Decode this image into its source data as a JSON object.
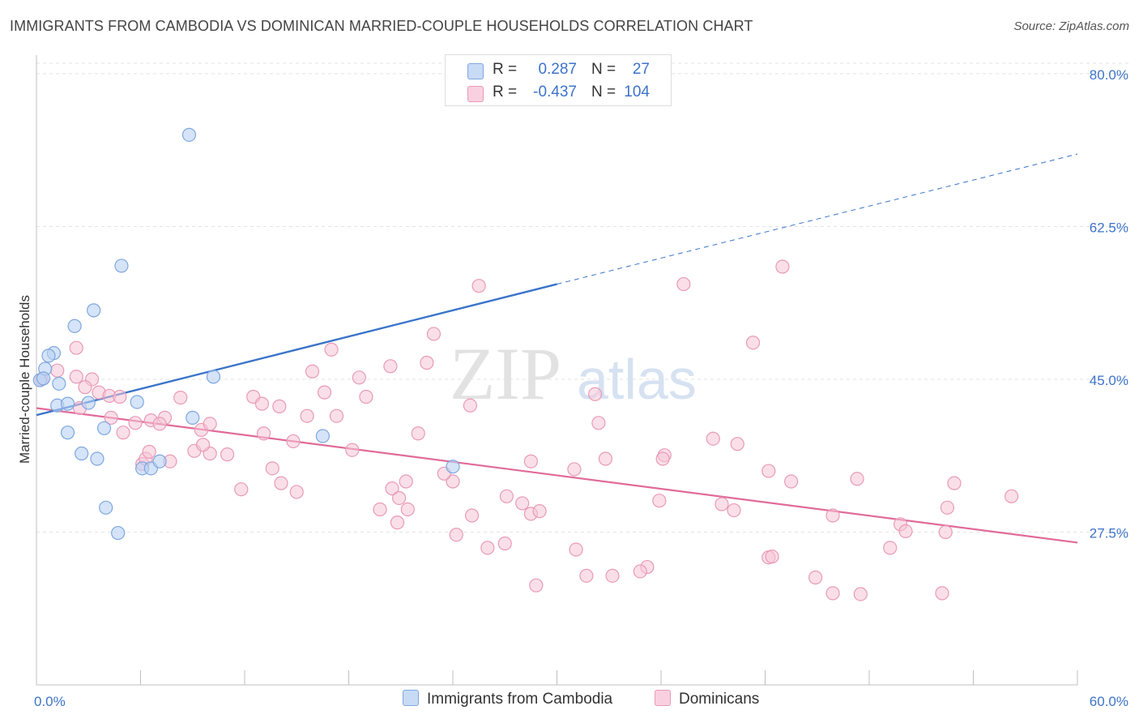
{
  "title": "IMMIGRANTS FROM CAMBODIA VS DOMINICAN MARRIED-COUPLE HOUSEHOLDS CORRELATION CHART",
  "source": "Source: ZipAtlas.com",
  "watermark": "ZIPatlas",
  "legend_top": [
    {
      "r_label": "R =",
      "r_value": "0.287",
      "n_label": "N =",
      "n_value": "27"
    },
    {
      "r_label": "R =",
      "r_value": "-0.437",
      "n_label": "N =",
      "n_value": "104"
    }
  ],
  "bottom_legend": [
    "Immigrants from Cambodia",
    "Dominicans"
  ],
  "colors": {
    "cambodia_fill": "#b9d2f3",
    "cambodia_stroke": "#7ea7e0",
    "cambodia_line": "#3a74c9",
    "dominican_fill": "#f6c5d6",
    "dominican_stroke": "#e99ab7",
    "dominican_line": "#e06b99",
    "tick_text": "#3d73c8"
  },
  "chart_data": {
    "type": "scatter",
    "title": "IMMIGRANTS FROM CAMBODIA VS DOMINICAN MARRIED-COUPLE HOUSEHOLDS CORRELATION CHART",
    "xlabel": "",
    "ylabel": "Married-couple Households",
    "xlim": [
      0,
      60
    ],
    "ylim": [
      10,
      82.5
    ],
    "x_tick_labels": [
      "0.0%",
      "60.0%"
    ],
    "y_ticks": [
      27.5,
      45.0,
      62.5,
      80.0
    ],
    "y_tick_labels": [
      "27.5%",
      "45.0%",
      "62.5%",
      "80.0%"
    ],
    "grid": true,
    "legend_position": "top-center",
    "series": [
      {
        "name": "Immigrants from Cambodia",
        "points": [
          [
            0.2,
            44.9
          ],
          [
            1.0,
            48.0
          ],
          [
            0.7,
            47.7
          ],
          [
            1.3,
            44.5
          ],
          [
            2.2,
            51.1
          ],
          [
            3.3,
            52.9
          ],
          [
            1.2,
            42.0
          ],
          [
            1.8,
            42.2
          ],
          [
            3.0,
            42.3
          ],
          [
            5.8,
            42.4
          ],
          [
            4.9,
            58.0
          ],
          [
            8.8,
            73.0
          ],
          [
            10.2,
            45.3
          ],
          [
            1.8,
            38.9
          ],
          [
            3.9,
            39.4
          ],
          [
            9.0,
            40.6
          ],
          [
            16.5,
            38.5
          ],
          [
            2.6,
            36.5
          ],
          [
            3.5,
            35.9
          ],
          [
            6.1,
            34.8
          ],
          [
            6.6,
            34.8
          ],
          [
            7.1,
            35.6
          ],
          [
            24.0,
            35.0
          ],
          [
            4.0,
            30.3
          ],
          [
            4.7,
            27.4
          ],
          [
            0.5,
            46.2
          ],
          [
            0.4,
            45.1
          ]
        ],
        "trend": {
          "x0": 0,
          "y0": 40.9,
          "x1": 30.0,
          "y1": 55.9,
          "dashed_to_x": 60,
          "dashed_to_y": 70.8
        }
      },
      {
        "name": "Dominicans",
        "points": [
          [
            0.3,
            45.0
          ],
          [
            1.2,
            46.0
          ],
          [
            2.3,
            45.3
          ],
          [
            3.2,
            45.0
          ],
          [
            2.3,
            48.6
          ],
          [
            2.8,
            44.1
          ],
          [
            3.6,
            43.5
          ],
          [
            4.2,
            43.1
          ],
          [
            4.8,
            43.0
          ],
          [
            2.5,
            41.7
          ],
          [
            4.3,
            40.6
          ],
          [
            5.0,
            38.9
          ],
          [
            5.7,
            40.0
          ],
          [
            6.6,
            40.3
          ],
          [
            7.4,
            40.6
          ],
          [
            7.1,
            39.9
          ],
          [
            8.3,
            42.9
          ],
          [
            9.5,
            39.2
          ],
          [
            10.0,
            39.9
          ],
          [
            9.1,
            36.8
          ],
          [
            10.0,
            36.5
          ],
          [
            6.1,
            35.3
          ],
          [
            6.3,
            35.9
          ],
          [
            6.5,
            36.7
          ],
          [
            7.7,
            35.6
          ],
          [
            11.0,
            36.4
          ],
          [
            12.5,
            43.0
          ],
          [
            13.0,
            42.2
          ],
          [
            13.1,
            38.8
          ],
          [
            14.0,
            41.9
          ],
          [
            15.6,
            40.8
          ],
          [
            14.8,
            37.9
          ],
          [
            15.9,
            45.9
          ],
          [
            16.6,
            43.5
          ],
          [
            17.3,
            40.8
          ],
          [
            17.0,
            48.4
          ],
          [
            18.2,
            36.9
          ],
          [
            18.6,
            45.2
          ],
          [
            19.0,
            43.0
          ],
          [
            19.8,
            30.1
          ],
          [
            20.5,
            32.5
          ],
          [
            20.8,
            28.6
          ],
          [
            20.9,
            31.4
          ],
          [
            21.4,
            30.1
          ],
          [
            21.3,
            33.3
          ],
          [
            22.0,
            38.8
          ],
          [
            20.4,
            46.5
          ],
          [
            22.5,
            46.9
          ],
          [
            22.9,
            50.2
          ],
          [
            24.0,
            33.3
          ],
          [
            25.5,
            55.7
          ],
          [
            24.2,
            27.2
          ],
          [
            25.1,
            29.4
          ],
          [
            25.0,
            42.0
          ],
          [
            26.0,
            25.7
          ],
          [
            27.0,
            26.2
          ],
          [
            28.5,
            35.6
          ],
          [
            28.8,
            21.4
          ],
          [
            28.0,
            30.8
          ],
          [
            28.5,
            29.6
          ],
          [
            31.1,
            25.5
          ],
          [
            31.7,
            22.5
          ],
          [
            32.2,
            43.3
          ],
          [
            32.4,
            40.0
          ],
          [
            32.8,
            35.9
          ],
          [
            33.2,
            22.5
          ],
          [
            35.2,
            23.5
          ],
          [
            34.8,
            23.0
          ],
          [
            35.9,
            31.1
          ],
          [
            36.2,
            36.3
          ],
          [
            36.1,
            35.9
          ],
          [
            37.3,
            55.9
          ],
          [
            39.5,
            30.7
          ],
          [
            40.2,
            30.0
          ],
          [
            39.0,
            38.2
          ],
          [
            42.2,
            34.5
          ],
          [
            40.4,
            37.6
          ],
          [
            42.2,
            24.6
          ],
          [
            42.4,
            24.7
          ],
          [
            43.5,
            33.3
          ],
          [
            45.9,
            20.5
          ],
          [
            44.9,
            22.3
          ],
          [
            45.9,
            29.4
          ],
          [
            47.3,
            33.6
          ],
          [
            43.0,
            57.9
          ],
          [
            47.5,
            20.4
          ],
          [
            49.2,
            25.7
          ],
          [
            49.8,
            28.4
          ],
          [
            50.1,
            27.6
          ],
          [
            52.2,
            20.5
          ],
          [
            52.4,
            27.5
          ],
          [
            52.5,
            30.3
          ],
          [
            52.9,
            33.1
          ],
          [
            41.3,
            49.2
          ],
          [
            56.2,
            31.6
          ],
          [
            9.6,
            37.5
          ],
          [
            11.8,
            32.4
          ],
          [
            14.1,
            33.1
          ],
          [
            15.0,
            32.1
          ],
          [
            13.6,
            34.8
          ],
          [
            27.1,
            31.6
          ],
          [
            29.0,
            29.9
          ],
          [
            31.0,
            34.7
          ],
          [
            23.5,
            34.2
          ]
        ],
        "trend": {
          "x0": 0,
          "y0": 41.7,
          "x1": 60,
          "y1": 26.3
        }
      }
    ]
  }
}
